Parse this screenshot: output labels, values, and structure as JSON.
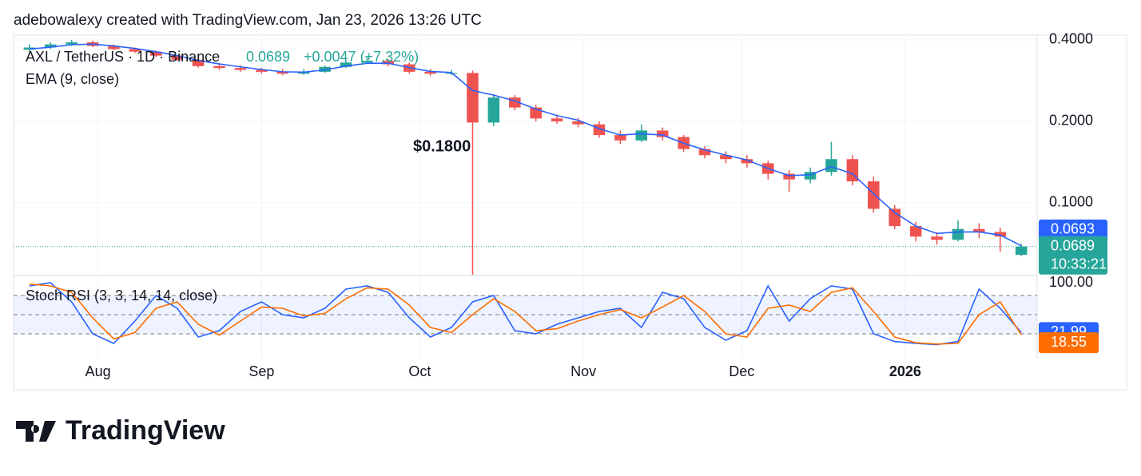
{
  "header": {
    "attribution": "adebowalexy created with TradingView.com, Jan 23, 2026 13:26 UTC",
    "logo_text": "TradingView"
  },
  "chart_data": [
    {
      "type": "candlestick",
      "title": "AXL / TetherUS · 1D · Binance",
      "change": "+0.0047 (+7.32%)",
      "annotation": "$0.1800",
      "countdown": "10:33:21",
      "up_color": "#26a69a",
      "down_color": "#ef5350",
      "log_scale": true,
      "x": [
        3,
        7,
        11,
        15,
        19,
        23,
        27,
        31,
        35,
        39,
        43,
        47,
        51,
        55,
        59,
        63,
        67,
        71,
        75,
        79,
        83,
        87,
        91,
        95,
        99,
        103,
        107,
        111,
        115,
        119,
        123,
        127,
        131,
        135,
        139,
        143,
        147,
        151,
        155,
        159,
        163,
        167,
        171,
        175,
        179,
        183,
        187,
        191
      ],
      "open": [
        0.368,
        0.375,
        0.385,
        0.392,
        0.38,
        0.37,
        0.362,
        0.35,
        0.338,
        0.32,
        0.315,
        0.31,
        0.305,
        0.3,
        0.305,
        0.318,
        0.33,
        0.335,
        0.325,
        0.305,
        0.3,
        0.302,
        0.198,
        0.245,
        0.225,
        0.205,
        0.2,
        0.195,
        0.178,
        0.17,
        0.185,
        0.175,
        0.158,
        0.15,
        0.145,
        0.14,
        0.128,
        0.122,
        0.13,
        0.145,
        0.12,
        0.095,
        0.082,
        0.075,
        0.073,
        0.08,
        0.078,
        0.0642
      ],
      "high": [
        0.385,
        0.392,
        0.4,
        0.398,
        0.385,
        0.375,
        0.365,
        0.352,
        0.342,
        0.328,
        0.322,
        0.316,
        0.312,
        0.312,
        0.322,
        0.336,
        0.345,
        0.34,
        0.33,
        0.312,
        0.31,
        0.308,
        0.252,
        0.25,
        0.23,
        0.212,
        0.206,
        0.2,
        0.185,
        0.195,
        0.19,
        0.178,
        0.162,
        0.155,
        0.15,
        0.143,
        0.132,
        0.135,
        0.168,
        0.15,
        0.125,
        0.098,
        0.085,
        0.078,
        0.086,
        0.084,
        0.081,
        0.0705
      ],
      "low": [
        0.362,
        0.37,
        0.38,
        0.376,
        0.366,
        0.358,
        0.346,
        0.334,
        0.316,
        0.31,
        0.305,
        0.3,
        0.296,
        0.297,
        0.302,
        0.315,
        0.328,
        0.32,
        0.3,
        0.295,
        0.296,
        0.0542,
        0.192,
        0.22,
        0.2,
        0.196,
        0.19,
        0.174,
        0.165,
        0.168,
        0.17,
        0.154,
        0.146,
        0.14,
        0.135,
        0.122,
        0.11,
        0.118,
        0.126,
        0.116,
        0.092,
        0.08,
        0.072,
        0.07,
        0.072,
        0.074,
        0.066,
        0.0635
      ],
      "close": [
        0.375,
        0.385,
        0.392,
        0.38,
        0.37,
        0.362,
        0.35,
        0.338,
        0.32,
        0.315,
        0.31,
        0.305,
        0.3,
        0.305,
        0.318,
        0.33,
        0.335,
        0.325,
        0.305,
        0.3,
        0.302,
        0.198,
        0.245,
        0.225,
        0.205,
        0.2,
        0.195,
        0.178,
        0.17,
        0.185,
        0.175,
        0.158,
        0.15,
        0.145,
        0.14,
        0.128,
        0.122,
        0.13,
        0.145,
        0.12,
        0.095,
        0.082,
        0.075,
        0.073,
        0.08,
        0.078,
        0.075,
        0.0689
      ],
      "series": [
        {
          "name": "EMA (9, close)",
          "color": "#2962ff",
          "values": [
            0.37,
            0.376,
            0.384,
            0.386,
            0.38,
            0.372,
            0.362,
            0.35,
            0.336,
            0.326,
            0.318,
            0.311,
            0.305,
            0.304,
            0.31,
            0.32,
            0.328,
            0.328,
            0.316,
            0.306,
            0.303,
            0.26,
            0.25,
            0.238,
            0.222,
            0.21,
            0.202,
            0.188,
            0.178,
            0.18,
            0.178,
            0.166,
            0.157,
            0.15,
            0.144,
            0.134,
            0.126,
            0.127,
            0.136,
            0.128,
            0.108,
            0.092,
            0.082,
            0.077,
            0.078,
            0.078,
            0.076,
            0.0693
          ]
        }
      ],
      "xlim": [
        0,
        194
      ],
      "xticks": [
        {
          "value": 16,
          "label": "Aug"
        },
        {
          "value": 47,
          "label": "Sep"
        },
        {
          "value": 77,
          "label": "Oct"
        },
        {
          "value": 108,
          "label": "Nov"
        },
        {
          "value": 138,
          "label": "Dec"
        },
        {
          "value": 169,
          "label": "2026"
        }
      ],
      "ylim": [
        0.0542,
        0.411
      ],
      "yticks": [
        {
          "value": 0.4,
          "label": "0.4000"
        },
        {
          "value": 0.2,
          "label": "0.2000"
        },
        {
          "value": 0.1,
          "label": "0.1000"
        }
      ],
      "grid": true
    },
    {
      "type": "line",
      "title": "Stoch RSI (3, 3, 14, 14, close)",
      "x": [
        3,
        7,
        11,
        15,
        19,
        23,
        27,
        31,
        35,
        39,
        43,
        47,
        51,
        55,
        59,
        63,
        67,
        71,
        75,
        79,
        83,
        87,
        91,
        95,
        99,
        103,
        107,
        111,
        115,
        119,
        123,
        127,
        131,
        135,
        139,
        143,
        147,
        151,
        155,
        159,
        163,
        167,
        171,
        175,
        179,
        183,
        187,
        191
      ],
      "series": [
        {
          "color": "#2962ff",
          "values": [
            95,
            100,
            70,
            20,
            5,
            40,
            80,
            60,
            15,
            25,
            55,
            70,
            50,
            45,
            60,
            90,
            95,
            85,
            45,
            15,
            30,
            70,
            80,
            25,
            20,
            35,
            45,
            55,
            60,
            30,
            85,
            75,
            30,
            10,
            25,
            95,
            40,
            75,
            95,
            90,
            20,
            8,
            5,
            3,
            8,
            90,
            60,
            21.99
          ]
        },
        {
          "color": "#ff6d00",
          "values": [
            98,
            95,
            85,
            45,
            12,
            22,
            60,
            70,
            35,
            18,
            40,
            62,
            60,
            48,
            52,
            75,
            92,
            90,
            65,
            30,
            22,
            50,
            75,
            55,
            25,
            28,
            40,
            50,
            58,
            45,
            62,
            80,
            55,
            20,
            15,
            60,
            65,
            55,
            85,
            92,
            55,
            15,
            6,
            4,
            5,
            50,
            70,
            18.55
          ]
        }
      ],
      "levels": [
        80,
        50,
        20
      ],
      "xlim": [
        0,
        194
      ],
      "ylim": [
        -20,
        110
      ],
      "yticks": [
        {
          "value": 100,
          "label": "100.00"
        }
      ]
    }
  ]
}
